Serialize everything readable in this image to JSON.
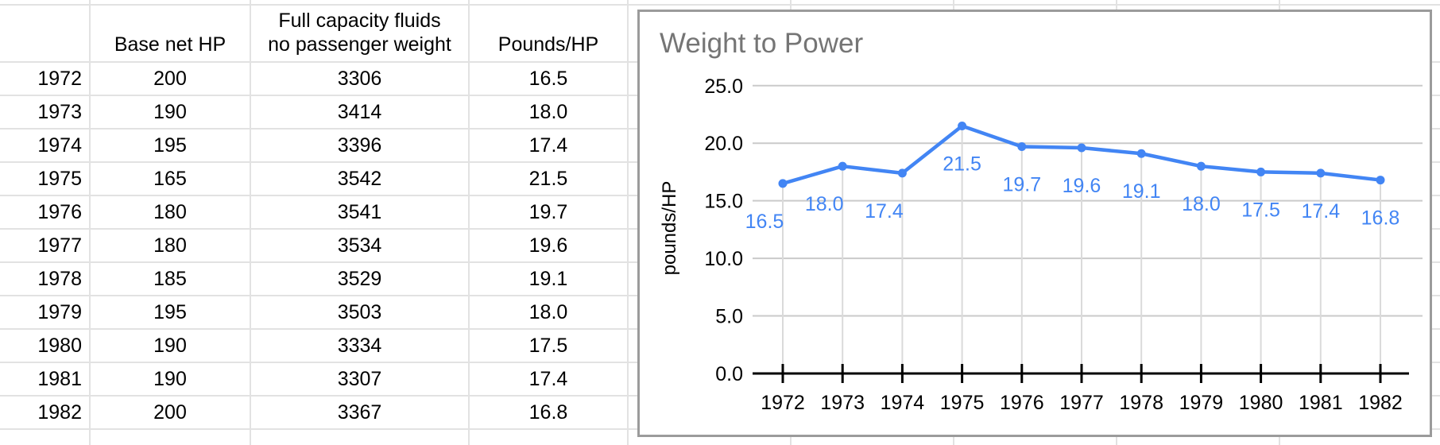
{
  "table": {
    "headers": {
      "year": "",
      "hp": "Base net HP",
      "weight_line1": "Full capacity fluids",
      "weight_line2": "no passenger weight",
      "pounds": "Pounds/HP"
    },
    "rows": [
      {
        "year": "1972",
        "hp": "200",
        "weight": "3306",
        "pounds": "16.5"
      },
      {
        "year": "1973",
        "hp": "190",
        "weight": "3414",
        "pounds": "18.0"
      },
      {
        "year": "1974",
        "hp": "195",
        "weight": "3396",
        "pounds": "17.4"
      },
      {
        "year": "1975",
        "hp": "165",
        "weight": "3542",
        "pounds": "21.5"
      },
      {
        "year": "1976",
        "hp": "180",
        "weight": "3541",
        "pounds": "19.7"
      },
      {
        "year": "1977",
        "hp": "180",
        "weight": "3534",
        "pounds": "19.6"
      },
      {
        "year": "1978",
        "hp": "185",
        "weight": "3529",
        "pounds": "19.1"
      },
      {
        "year": "1979",
        "hp": "195",
        "weight": "3503",
        "pounds": "18.0"
      },
      {
        "year": "1980",
        "hp": "190",
        "weight": "3334",
        "pounds": "17.5"
      },
      {
        "year": "1981",
        "hp": "190",
        "weight": "3307",
        "pounds": "17.4"
      },
      {
        "year": "1982",
        "hp": "200",
        "weight": "3367",
        "pounds": "16.8"
      }
    ]
  },
  "chart_data": {
    "type": "line",
    "title": "Weight to Power",
    "xlabel": "",
    "ylabel": "pounds/HP",
    "categories": [
      "1972",
      "1973",
      "1974",
      "1975",
      "1976",
      "1977",
      "1978",
      "1979",
      "1980",
      "1981",
      "1982"
    ],
    "series": [
      {
        "name": "Pounds/HP",
        "values": [
          16.5,
          18.0,
          17.4,
          21.5,
          19.7,
          19.6,
          19.1,
          18.0,
          17.5,
          17.4,
          16.8
        ]
      }
    ],
    "point_labels": [
      "16.5",
      "18.0",
      "17.4",
      "21.5",
      "19.7",
      "19.6",
      "19.1",
      "18.0",
      "17.5",
      "17.4",
      "16.8"
    ],
    "yticks": [
      0,
      5,
      10,
      15,
      20,
      25
    ],
    "ytick_labels": [
      "0.0",
      "5.0",
      "10.0",
      "15.0",
      "20.0",
      "25.0"
    ],
    "ylim": [
      0,
      25
    ],
    "grid": "horizontal",
    "legend": "none",
    "colors": {
      "series": "#4285f4",
      "labels": "#4285f4",
      "title": "#757575",
      "axis": "#000000",
      "gridline": "#cacaca",
      "droplines": "#dadada"
    }
  }
}
